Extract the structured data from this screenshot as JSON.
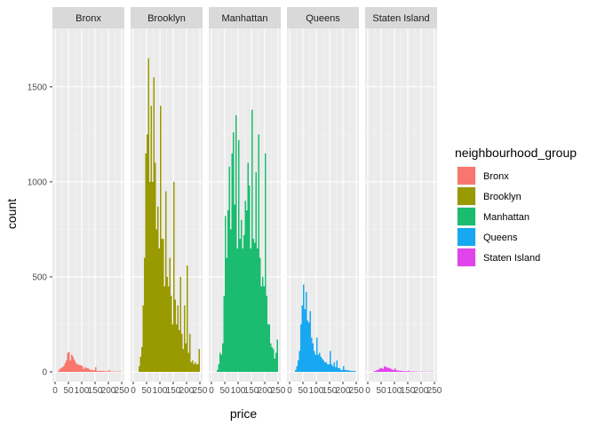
{
  "chart_data": {
    "type": "bar",
    "subtype": "faceted-histogram",
    "xlabel": "price",
    "ylabel": "count",
    "xlim": [
      0,
      250
    ],
    "ylim": [
      0,
      1750
    ],
    "x_ticks": [
      0,
      50,
      100,
      150,
      200,
      250
    ],
    "x_tick_labels": [
      "0",
      "50",
      "100",
      "150",
      "200",
      "250"
    ],
    "y_ticks": [
      0,
      500,
      1000,
      1500
    ],
    "y_tick_labels": [
      "0",
      "500",
      "1000",
      "1500"
    ],
    "grid": true,
    "bin_width": 5,
    "legend": {
      "title": "neighbourhood_group",
      "position": "right"
    },
    "series": [
      {
        "name": "Bronx",
        "color": "#F8766D",
        "bins": [
          [
            10,
            5
          ],
          [
            15,
            15
          ],
          [
            20,
            20
          ],
          [
            25,
            25
          ],
          [
            30,
            30
          ],
          [
            35,
            45
          ],
          [
            40,
            60
          ],
          [
            45,
            100
          ],
          [
            50,
            105
          ],
          [
            55,
            60
          ],
          [
            60,
            90
          ],
          [
            65,
            80
          ],
          [
            70,
            65
          ],
          [
            75,
            50
          ],
          [
            80,
            40
          ],
          [
            85,
            40
          ],
          [
            90,
            35
          ],
          [
            95,
            35
          ],
          [
            100,
            30
          ],
          [
            105,
            15
          ],
          [
            110,
            25
          ],
          [
            115,
            20
          ],
          [
            120,
            20
          ],
          [
            125,
            15
          ],
          [
            130,
            10
          ],
          [
            135,
            10
          ],
          [
            140,
            8
          ],
          [
            145,
            8
          ],
          [
            150,
            25
          ],
          [
            155,
            5
          ],
          [
            160,
            5
          ],
          [
            165,
            5
          ],
          [
            170,
            5
          ],
          [
            175,
            5
          ],
          [
            180,
            5
          ],
          [
            185,
            3
          ],
          [
            190,
            3
          ],
          [
            195,
            3
          ],
          [
            200,
            10
          ],
          [
            205,
            2
          ],
          [
            210,
            2
          ],
          [
            215,
            2
          ],
          [
            220,
            2
          ],
          [
            225,
            2
          ],
          [
            230,
            2
          ],
          [
            235,
            2
          ],
          [
            240,
            2
          ],
          [
            245,
            2
          ]
        ]
      },
      {
        "name": "Brooklyn",
        "color": "#999900",
        "bins": [
          [
            20,
            30
          ],
          [
            25,
            80
          ],
          [
            30,
            130
          ],
          [
            35,
            350
          ],
          [
            40,
            600
          ],
          [
            45,
            1150
          ],
          [
            50,
            1250
          ],
          [
            55,
            1650
          ],
          [
            60,
            1000
          ],
          [
            65,
            1400
          ],
          [
            70,
            1000
          ],
          [
            75,
            1550
          ],
          [
            80,
            1100
          ],
          [
            85,
            750
          ],
          [
            90,
            870
          ],
          [
            95,
            650
          ],
          [
            100,
            1400
          ],
          [
            105,
            700
          ],
          [
            110,
            700
          ],
          [
            115,
            450
          ],
          [
            120,
            950
          ],
          [
            125,
            500
          ],
          [
            130,
            450
          ],
          [
            135,
            600
          ],
          [
            140,
            400
          ],
          [
            145,
            250
          ],
          [
            150,
            1000
          ],
          [
            155,
            380
          ],
          [
            160,
            250
          ],
          [
            165,
            350
          ],
          [
            170,
            220
          ],
          [
            175,
            500
          ],
          [
            180,
            200
          ],
          [
            185,
            120
          ],
          [
            190,
            350
          ],
          [
            195,
            150
          ],
          [
            200,
            560
          ],
          [
            205,
            100
          ],
          [
            210,
            200
          ],
          [
            215,
            50
          ],
          [
            220,
            60
          ],
          [
            225,
            40
          ],
          [
            230,
            50
          ],
          [
            235,
            40
          ],
          [
            240,
            40
          ],
          [
            245,
            120
          ]
        ]
      },
      {
        "name": "Manhattan",
        "color": "#1BBC6F",
        "bins": [
          [
            20,
            10
          ],
          [
            25,
            40
          ],
          [
            30,
            100
          ],
          [
            35,
            90
          ],
          [
            40,
            150
          ],
          [
            45,
            400
          ],
          [
            50,
            820
          ],
          [
            55,
            600
          ],
          [
            60,
            850
          ],
          [
            65,
            1080
          ],
          [
            70,
            750
          ],
          [
            75,
            1150
          ],
          [
            80,
            1260
          ],
          [
            85,
            880
          ],
          [
            90,
            1350
          ],
          [
            95,
            650
          ],
          [
            100,
            1220
          ],
          [
            105,
            700
          ],
          [
            110,
            800
          ],
          [
            115,
            650
          ],
          [
            120,
            720
          ],
          [
            125,
            900
          ],
          [
            130,
            850
          ],
          [
            135,
            1100
          ],
          [
            140,
            980
          ],
          [
            145,
            650
          ],
          [
            150,
            1380
          ],
          [
            155,
            700
          ],
          [
            160,
            680
          ],
          [
            165,
            1050
          ],
          [
            170,
            650
          ],
          [
            175,
            1250
          ],
          [
            180,
            600
          ],
          [
            185,
            450
          ],
          [
            190,
            500
          ],
          [
            195,
            450
          ],
          [
            200,
            1150
          ],
          [
            205,
            400
          ],
          [
            210,
            250
          ],
          [
            215,
            250
          ],
          [
            220,
            150
          ],
          [
            225,
            130
          ],
          [
            230,
            120
          ],
          [
            235,
            70
          ],
          [
            240,
            100
          ],
          [
            245,
            170
          ]
        ]
      },
      {
        "name": "Queens",
        "color": "#18A8F1",
        "bins": [
          [
            20,
            10
          ],
          [
            25,
            30
          ],
          [
            30,
            60
          ],
          [
            35,
            110
          ],
          [
            40,
            250
          ],
          [
            45,
            350
          ],
          [
            50,
            460
          ],
          [
            55,
            330
          ],
          [
            60,
            420
          ],
          [
            65,
            270
          ],
          [
            70,
            260
          ],
          [
            75,
            320
          ],
          [
            80,
            180
          ],
          [
            85,
            150
          ],
          [
            90,
            110
          ],
          [
            95,
            90
          ],
          [
            100,
            180
          ],
          [
            105,
            90
          ],
          [
            110,
            100
          ],
          [
            115,
            80
          ],
          [
            120,
            70
          ],
          [
            125,
            60
          ],
          [
            130,
            50
          ],
          [
            135,
            50
          ],
          [
            140,
            40
          ],
          [
            145,
            40
          ],
          [
            150,
            110
          ],
          [
            155,
            40
          ],
          [
            160,
            30
          ],
          [
            165,
            50
          ],
          [
            170,
            25
          ],
          [
            175,
            60
          ],
          [
            180,
            20
          ],
          [
            185,
            20
          ],
          [
            190,
            10
          ],
          [
            195,
            10
          ],
          [
            200,
            30
          ],
          [
            205,
            10
          ],
          [
            210,
            10
          ],
          [
            215,
            8
          ],
          [
            220,
            8
          ],
          [
            225,
            6
          ],
          [
            230,
            5
          ],
          [
            235,
            5
          ],
          [
            240,
            4
          ],
          [
            245,
            4
          ]
        ]
      },
      {
        "name": "Staten Island",
        "color": "#E244EB",
        "bins": [
          [
            20,
            2
          ],
          [
            25,
            5
          ],
          [
            30,
            8
          ],
          [
            35,
            10
          ],
          [
            40,
            15
          ],
          [
            45,
            20
          ],
          [
            50,
            20
          ],
          [
            55,
            15
          ],
          [
            60,
            30
          ],
          [
            65,
            25
          ],
          [
            70,
            25
          ],
          [
            75,
            20
          ],
          [
            80,
            20
          ],
          [
            85,
            15
          ],
          [
            90,
            12
          ],
          [
            95,
            10
          ],
          [
            100,
            18
          ],
          [
            105,
            8
          ],
          [
            110,
            8
          ],
          [
            115,
            5
          ],
          [
            120,
            5
          ],
          [
            125,
            5
          ],
          [
            130,
            4
          ],
          [
            135,
            3
          ],
          [
            140,
            3
          ],
          [
            145,
            3
          ],
          [
            150,
            6
          ],
          [
            155,
            2
          ],
          [
            160,
            2
          ],
          [
            165,
            2
          ],
          [
            170,
            2
          ],
          [
            175,
            2
          ],
          [
            180,
            2
          ],
          [
            185,
            1
          ],
          [
            190,
            1
          ],
          [
            195,
            1
          ],
          [
            200,
            2
          ],
          [
            205,
            1
          ],
          [
            210,
            1
          ],
          [
            215,
            1
          ],
          [
            220,
            1
          ],
          [
            225,
            1
          ],
          [
            230,
            1
          ],
          [
            235,
            1
          ],
          [
            240,
            1
          ],
          [
            245,
            1
          ]
        ]
      }
    ]
  }
}
